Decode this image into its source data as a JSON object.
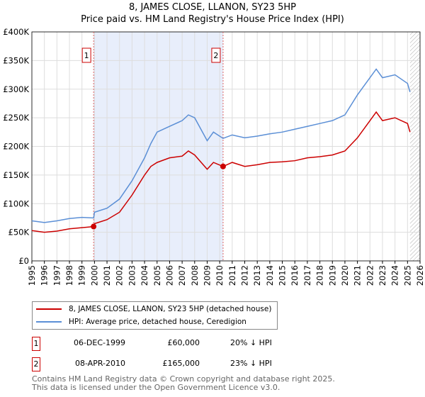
{
  "title": "8, JAMES CLOSE, LLANON, SY23 5HP",
  "subtitle": "Price paid vs. HM Land Registry's House Price Index (HPI)",
  "chart_data": {
    "type": "line",
    "title": "8, JAMES CLOSE, LLANON, SY23 5HP",
    "xlabel": "",
    "ylabel": "",
    "xlim": [
      1995,
      2026
    ],
    "ylim": [
      0,
      400000
    ],
    "yticks": [
      0,
      50000,
      100000,
      150000,
      200000,
      250000,
      300000,
      350000,
      400000
    ],
    "ytick_labels": [
      "£0",
      "£50K",
      "£100K",
      "£150K",
      "£200K",
      "£250K",
      "£300K",
      "£350K",
      "£400K"
    ],
    "xticks": [
      1995,
      1996,
      1997,
      1998,
      1999,
      2000,
      2001,
      2002,
      2003,
      2004,
      2005,
      2006,
      2007,
      2008,
      2009,
      2010,
      2011,
      2012,
      2013,
      2014,
      2015,
      2016,
      2017,
      2018,
      2019,
      2020,
      2021,
      2022,
      2023,
      2024,
      2025,
      2026
    ],
    "series": [
      {
        "name": "8, JAMES CLOSE, LLANON, SY23 5HP (detached house)",
        "color": "#cc0000",
        "x": [
          1995,
          1996,
          1997,
          1998,
          1999,
          1999.93,
          2000,
          2001,
          2002,
          2003,
          2004,
          2004.5,
          2005,
          2006,
          2007,
          2007.5,
          2008,
          2009,
          2009.5,
          2010.27,
          2011,
          2012,
          2013,
          2014,
          2015,
          2016,
          2017,
          2018,
          2019,
          2020,
          2021,
          2022,
          2022.5,
          2023,
          2024,
          2025,
          2025.2
        ],
        "y": [
          53000,
          50000,
          52000,
          56000,
          58000,
          60000,
          65000,
          72000,
          85000,
          115000,
          150000,
          165000,
          172000,
          180000,
          183000,
          192000,
          185000,
          160000,
          172000,
          165000,
          172000,
          165000,
          168000,
          172000,
          173000,
          175000,
          180000,
          182000,
          185000,
          192000,
          215000,
          245000,
          260000,
          245000,
          250000,
          240000,
          225000
        ]
      },
      {
        "name": "HPI: Average price, detached house, Ceredigion",
        "color": "#5b8fd6",
        "x": [
          1995,
          1996,
          1997,
          1998,
          1999,
          1999.93,
          2000,
          2001,
          2002,
          2003,
          2004,
          2004.5,
          2005,
          2006,
          2007,
          2007.5,
          2008,
          2009,
          2009.5,
          2010.27,
          2011,
          2012,
          2013,
          2014,
          2015,
          2016,
          2017,
          2018,
          2019,
          2020,
          2021,
          2022,
          2022.5,
          2023,
          2024,
          2025,
          2025.2
        ],
        "y": [
          70000,
          67000,
          70000,
          74000,
          76000,
          75000,
          85000,
          92000,
          108000,
          140000,
          180000,
          205000,
          225000,
          235000,
          245000,
          255000,
          250000,
          210000,
          225000,
          214000,
          220000,
          215000,
          218000,
          222000,
          225000,
          230000,
          235000,
          240000,
          245000,
          255000,
          290000,
          320000,
          335000,
          320000,
          325000,
          310000,
          295000
        ]
      }
    ],
    "sales": [
      {
        "label": "1",
        "x": 1999.93,
        "y": 60000
      },
      {
        "label": "2",
        "x": 2010.27,
        "y": 165000
      }
    ],
    "shade_range": [
      1999.93,
      2010.27
    ],
    "projection_start": 2025.2,
    "legend_position": "below"
  },
  "transactions": [
    {
      "num": "1",
      "date": "06-DEC-1999",
      "price": "£60,000",
      "hpi": "20% ↓ HPI"
    },
    {
      "num": "2",
      "date": "08-APR-2010",
      "price": "£165,000",
      "hpi": "23% ↓ HPI"
    }
  ],
  "footer": [
    "Contains HM Land Registry data © Crown copyright and database right 2025.",
    "This data is licensed under the Open Government Licence v3.0."
  ]
}
